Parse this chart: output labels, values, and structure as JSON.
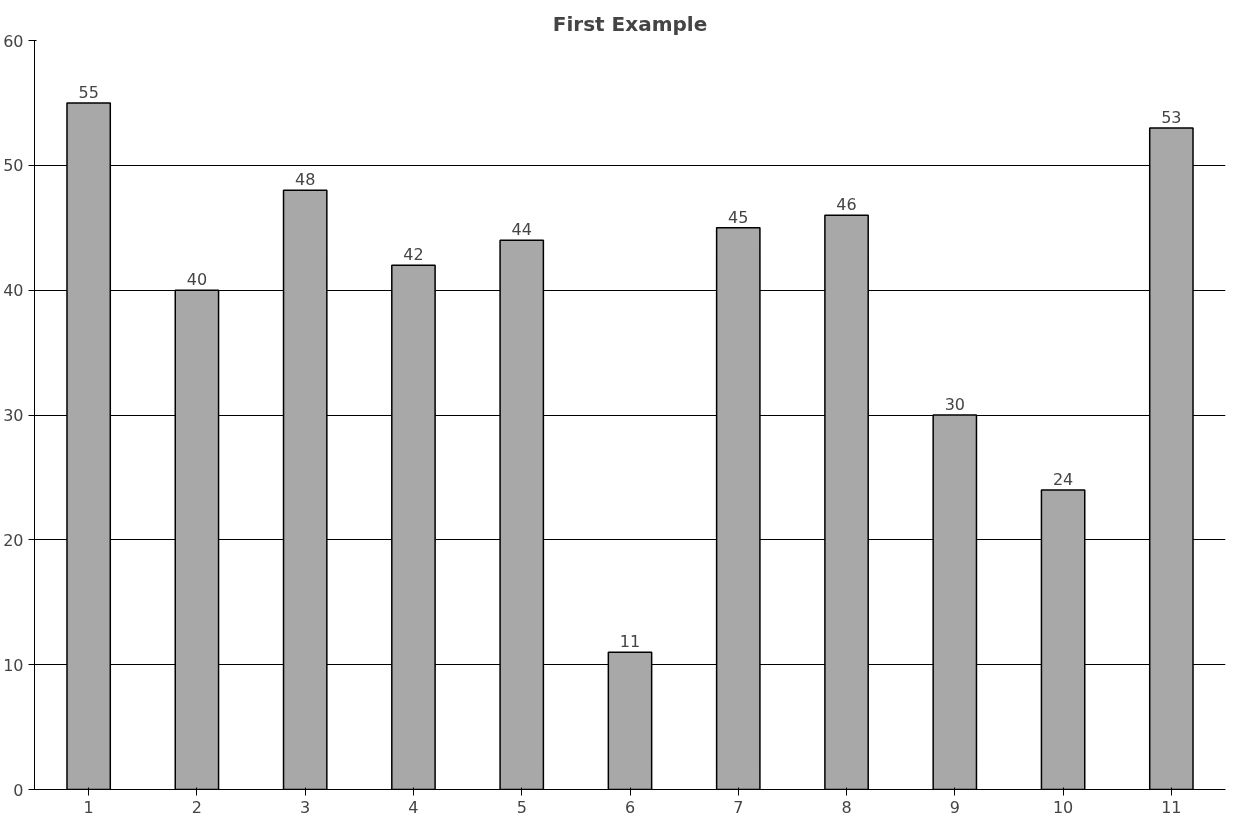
{
  "chart_data": {
    "type": "bar",
    "title": "First Example",
    "categories": [
      "1",
      "2",
      "3",
      "4",
      "5",
      "6",
      "7",
      "8",
      "9",
      "10",
      "11"
    ],
    "values": [
      55,
      40,
      48,
      42,
      44,
      11,
      45,
      46,
      30,
      24,
      53
    ],
    "color": "#a8a8a8",
    "ylim": [
      0,
      60
    ],
    "yticks": [
      0,
      10,
      20,
      30,
      40,
      50,
      60
    ],
    "grid": "y",
    "data_labels": true
  }
}
